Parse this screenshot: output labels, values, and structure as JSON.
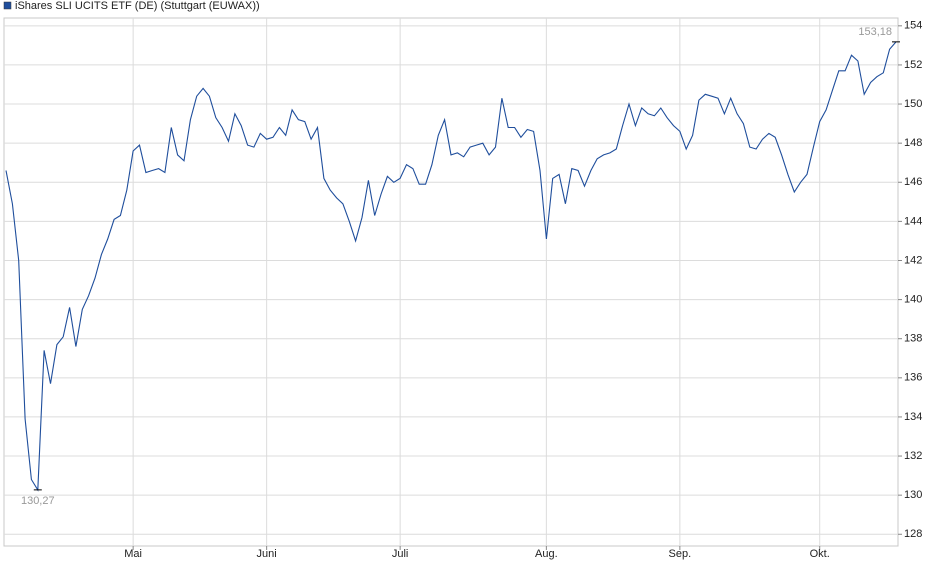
{
  "chart_data": {
    "type": "line",
    "series": [
      {
        "name": "iShares SLI UCITS ETF (DE) (Stuttgart (EUWAX))",
        "color": "#1f4e9c",
        "values": [
          146.6,
          144.9,
          142.0,
          133.9,
          130.8,
          130.27,
          137.4,
          135.7,
          137.7,
          138.1,
          139.6,
          137.6,
          139.5,
          140.2,
          141.1,
          142.3,
          143.1,
          144.1,
          144.3,
          145.6,
          147.6,
          147.9,
          146.5,
          146.6,
          146.7,
          146.5,
          148.8,
          147.4,
          147.1,
          149.2,
          150.4,
          150.8,
          150.4,
          149.3,
          148.8,
          148.1,
          149.5,
          148.9,
          147.9,
          147.8,
          148.5,
          148.2,
          148.3,
          148.8,
          148.4,
          149.7,
          149.2,
          149.1,
          148.2,
          148.8,
          146.2,
          145.6,
          145.2,
          144.9,
          144.0,
          143.0,
          144.2,
          146.1,
          144.3,
          145.4,
          146.3,
          146.0,
          146.2,
          146.9,
          146.7,
          145.9,
          145.9,
          146.9,
          148.4,
          149.2,
          147.4,
          147.5,
          147.3,
          147.8,
          147.9,
          148.0,
          147.4,
          147.8,
          150.3,
          148.8,
          148.8,
          148.3,
          148.7,
          148.6,
          146.6,
          143.1,
          146.2,
          146.4,
          144.9,
          146.7,
          146.6,
          145.8,
          146.6,
          147.2,
          147.4,
          147.5,
          147.7,
          148.9,
          150.0,
          148.9,
          149.8,
          149.5,
          149.4,
          149.8,
          149.3,
          148.9,
          148.6,
          147.7,
          148.4,
          150.2,
          150.5,
          150.4,
          150.3,
          149.5,
          150.3,
          149.5,
          149.0,
          147.8,
          147.7,
          148.2,
          148.5,
          148.3,
          147.4,
          146.4,
          145.5,
          146.0,
          146.4,
          147.8,
          149.1,
          149.7,
          150.7,
          151.7,
          151.7,
          152.5,
          152.2,
          150.5,
          151.1,
          151.4,
          151.6,
          152.8,
          153.18
        ],
        "value_labels": [
          null,
          null,
          null,
          null,
          null,
          "130,27",
          null,
          null,
          null,
          null,
          null,
          null,
          null,
          null,
          null,
          null,
          null,
          null,
          null,
          null,
          null,
          null,
          null,
          null,
          null,
          null,
          null,
          null,
          null,
          null,
          null,
          null,
          null,
          null,
          null,
          null,
          null,
          null,
          null,
          null,
          null,
          null,
          null,
          null,
          null,
          null,
          null,
          null,
          null,
          null,
          null,
          null,
          null,
          null,
          null,
          null,
          null,
          null,
          null,
          null,
          null,
          null,
          null,
          null,
          null,
          null,
          null,
          null,
          null,
          null,
          null,
          null,
          null,
          null,
          null,
          null,
          null,
          null,
          null,
          null,
          null,
          null,
          null,
          null,
          null,
          null,
          null,
          null,
          null,
          null,
          null,
          null,
          null,
          null,
          null,
          null,
          null,
          null,
          null,
          null,
          null,
          null,
          null,
          null,
          null,
          null,
          null,
          null,
          null,
          null,
          null,
          null,
          null,
          null,
          null,
          null,
          null,
          null,
          null,
          null,
          null,
          null,
          null,
          null,
          null,
          null,
          null,
          null,
          null,
          null,
          null,
          null,
          null,
          null,
          null,
          null,
          null,
          null,
          null,
          null,
          "153,18"
        ]
      }
    ],
    "categories": [
      null,
      null,
      null,
      null,
      null,
      null,
      null,
      null,
      null,
      null,
      null,
      null,
      null,
      null,
      null,
      null,
      null,
      null,
      null,
      null,
      "Mai",
      null,
      null,
      null,
      null,
      null,
      null,
      null,
      null,
      null,
      null,
      null,
      null,
      null,
      null,
      null,
      null,
      null,
      null,
      null,
      null,
      "Juni",
      null,
      null,
      null,
      null,
      null,
      null,
      null,
      null,
      null,
      null,
      null,
      null,
      null,
      null,
      null,
      null,
      null,
      null,
      null,
      null,
      "Juli",
      null,
      null,
      null,
      null,
      null,
      null,
      null,
      null,
      null,
      null,
      null,
      null,
      null,
      null,
      null,
      null,
      null,
      null,
      null,
      null,
      null,
      null,
      "Aug.",
      null,
      null,
      null,
      null,
      null,
      null,
      null,
      null,
      null,
      null,
      null,
      null,
      null,
      null,
      null,
      null,
      null,
      null,
      null,
      null,
      "Sep.",
      null,
      null,
      null,
      null,
      null,
      null,
      null,
      null,
      null,
      null,
      null,
      null,
      null,
      null,
      null,
      null,
      null,
      null,
      null,
      null,
      null,
      "Okt.",
      null,
      null,
      null,
      null,
      null,
      null,
      null,
      null,
      null,
      null,
      null,
      null
    ],
    "ylim": [
      127.4,
      154.4
    ],
    "yticks": [
      128,
      130,
      132,
      134,
      136,
      138,
      140,
      142,
      144,
      146,
      148,
      150,
      152,
      154
    ],
    "grid": true
  }
}
